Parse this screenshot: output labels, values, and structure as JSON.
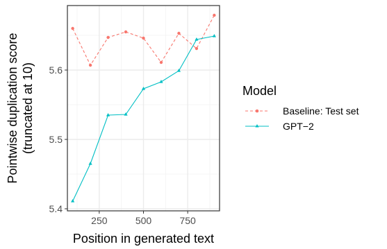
{
  "chart_data": {
    "type": "line",
    "xlabel": "Position in generated text",
    "ylabel_lines": [
      "Pointwise duplication score",
      "(truncated at 10)"
    ],
    "xlim": [
      70,
      930
    ],
    "ylim": [
      5.397,
      5.693
    ],
    "x_ticks": [
      250,
      500,
      750
    ],
    "x_tick_labels": [
      "250",
      "500",
      "750"
    ],
    "y_ticks": [
      5.4,
      5.5,
      5.6
    ],
    "y_tick_labels": [
      "5.4",
      "5.5",
      "5.6"
    ],
    "grid": true,
    "legend": {
      "title": "Model",
      "position": "right"
    },
    "series": [
      {
        "name": "Baseline: Test set",
        "color": "#F8766D",
        "linestyle": "dashed",
        "marker": "circle",
        "x": [
          100,
          200,
          300,
          400,
          500,
          600,
          700,
          800,
          900
        ],
        "y": [
          5.66,
          5.607,
          5.647,
          5.655,
          5.646,
          5.611,
          5.653,
          5.631,
          5.679
        ]
      },
      {
        "name": "GPT−2",
        "color": "#00BFC4",
        "linestyle": "solid",
        "marker": "triangle",
        "x": [
          100,
          200,
          300,
          400,
          500,
          600,
          700,
          800,
          900
        ],
        "y": [
          5.411,
          5.465,
          5.535,
          5.536,
          5.573,
          5.583,
          5.599,
          5.644,
          5.649
        ]
      }
    ]
  }
}
